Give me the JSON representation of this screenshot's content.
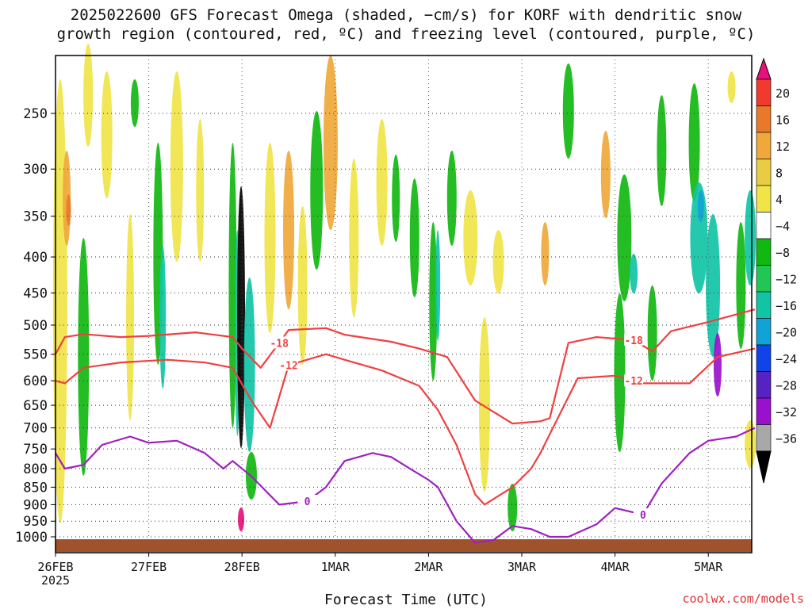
{
  "title_line1": "2025022600 GFS Forecast Omega (shaded, −cm/s) for KORF with dendritic snow",
  "title_line2": "growth region (contoured, red, ºC) and freezing level (contoured, purple, ºC)",
  "credit": "coolwx.com/models",
  "chart_data": {
    "type": "heatmap",
    "title": "2025022600 GFS Forecast Omega (shaded, −cm/s) for KORF with dendritic snow growth region (contoured, red, ºC) and freezing level (contoured, purple, ºC)",
    "xlabel": "Forecast Time (UTC)",
    "ylabel": "",
    "x_ticks": [
      "26FEB\n2025",
      "27FEB",
      "28FEB",
      "1MAR",
      "2MAR",
      "3MAR",
      "4MAR",
      "5MAR"
    ],
    "x_range_days": [
      0,
      7.5
    ],
    "y_ticks": [
      250,
      300,
      350,
      400,
      450,
      500,
      550,
      600,
      650,
      700,
      750,
      800,
      850,
      900,
      950,
      1000
    ],
    "y_range_hpa": [
      200,
      1020
    ],
    "grid": "dotted",
    "colorbar": {
      "labels": [
        "20",
        "16",
        "12",
        "8",
        "4",
        "−4",
        "−8",
        "−12",
        "−16",
        "−20",
        "−24",
        "−28",
        "−32",
        "−36"
      ],
      "colors": [
        "#e8107a",
        "#f03a2e",
        "#e8792b",
        "#f0a83a",
        "#e8cc44",
        "#f0e448",
        "#ffffff",
        "#11b811",
        "#22c655",
        "#11c4a6",
        "#11a3d6",
        "#1144e8",
        "#5522c4",
        "#9911cc",
        "#a8a8a8",
        "#000000"
      ]
    },
    "series": [
      {
        "name": "-18",
        "color": "#f04040",
        "x": [
          0,
          0.1,
          0.3,
          0.7,
          1.0,
          1.5,
          1.9,
          2.0,
          2.2,
          2.4,
          2.5,
          2.9,
          3.1,
          3.6,
          3.9,
          4.2,
          4.5,
          4.9,
          5.2,
          5.3,
          5.5,
          5.8,
          6.2,
          6.4,
          6.6,
          7.0,
          7.5
        ],
        "y": [
          550,
          520,
          515,
          520,
          518,
          512,
          520,
          540,
          575,
          530,
          508,
          505,
          516,
          528,
          540,
          555,
          640,
          690,
          685,
          678,
          530,
          520,
          525,
          545,
          510,
          495,
          475
        ]
      },
      {
        "name": "-12",
        "color": "#f04040",
        "x": [
          0,
          0.1,
          0.3,
          0.7,
          1.2,
          1.6,
          1.9,
          2.1,
          2.3,
          2.5,
          2.9,
          3.1,
          3.5,
          3.9,
          4.1,
          4.3,
          4.5,
          4.6,
          4.9,
          5.1,
          5.2,
          5.6,
          6.0,
          6.2,
          6.3,
          6.8,
          7.1,
          7.5
        ],
        "y": [
          600,
          605,
          575,
          565,
          560,
          565,
          575,
          640,
          700,
          570,
          550,
          560,
          580,
          610,
          660,
          740,
          870,
          900,
          850,
          800,
          760,
          595,
          590,
          600,
          605,
          605,
          555,
          540
        ]
      },
      {
        "name": "0",
        "color": "#a020c0",
        "x": [
          0,
          0.1,
          0.3,
          0.5,
          0.8,
          1.0,
          1.3,
          1.6,
          1.8,
          1.9,
          2.1,
          2.4,
          2.7,
          2.9,
          3.1,
          3.4,
          3.6,
          3.8,
          4.0,
          4.1,
          4.3,
          4.5,
          4.7,
          4.9,
          5.1,
          5.3,
          5.5,
          5.8,
          6.0,
          6.3,
          6.5,
          6.8,
          7.0,
          7.3,
          7.5
        ],
        "y": [
          760,
          800,
          790,
          740,
          720,
          735,
          730,
          760,
          800,
          780,
          820,
          900,
          890,
          850,
          780,
          760,
          770,
          800,
          830,
          850,
          950,
          1020,
          1010,
          965,
          975,
          1000,
          1000,
          960,
          910,
          930,
          840,
          760,
          730,
          720,
          700
        ]
      }
    ]
  }
}
